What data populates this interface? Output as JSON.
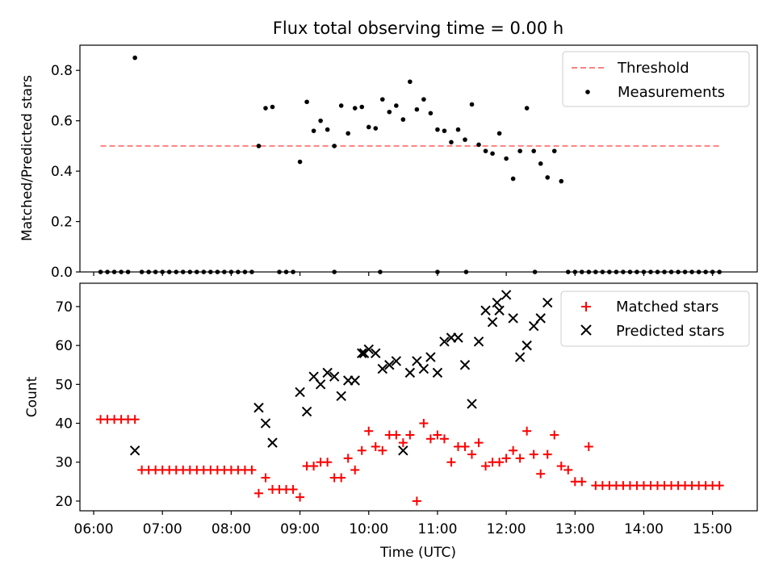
{
  "chart_data": {
    "title": "Flux total observing time = 0.00 h",
    "xlabel": "Time (UTC)",
    "x_ticks": [
      "06:00",
      "07:00",
      "08:00",
      "09:00",
      "10:00",
      "11:00",
      "12:00",
      "13:00",
      "14:00",
      "15:00"
    ],
    "x_range": [
      "05:48",
      "15:39"
    ],
    "shared_x": true,
    "grid": false,
    "subplots": [
      {
        "type": "scatter",
        "ylabel": "Matched/Predicted stars",
        "ylim": [
          0,
          0.9
        ],
        "y_ticks": [
          "0.0",
          "0.2",
          "0.4",
          "0.6",
          "0.8"
        ],
        "legend_position": "top-right",
        "threshold": {
          "name": "Threshold",
          "value": 0.5,
          "x_start": "06:06",
          "x_end": "15:06",
          "color": "#ff8080"
        },
        "series": [
          {
            "name": "Measurements",
            "color": "#000000",
            "marker": "dot",
            "x": [
              "06:06",
              "06:12",
              "06:18",
              "06:24",
              "06:30",
              "06:36",
              "06:42",
              "06:48",
              "06:54",
              "07:00",
              "07:06",
              "07:12",
              "07:18",
              "07:24",
              "07:30",
              "07:36",
              "07:42",
              "07:48",
              "07:54",
              "08:00",
              "08:06",
              "08:12",
              "08:18",
              "08:24",
              "08:30",
              "08:36",
              "08:42",
              "08:48",
              "08:54",
              "09:00",
              "09:06",
              "09:12",
              "09:18",
              "09:24",
              "09:30",
              "09:36",
              "09:42",
              "09:48",
              "09:54",
              "10:00",
              "10:06",
              "10:12",
              "10:18",
              "10:24",
              "10:30",
              "10:36",
              "10:42",
              "10:48",
              "10:54",
              "11:00",
              "11:06",
              "11:12",
              "11:18",
              "11:24",
              "11:30",
              "11:36",
              "11:42",
              "11:48",
              "11:54",
              "12:00",
              "12:06",
              "12:12",
              "12:18",
              "12:24",
              "12:30",
              "12:36",
              "12:42",
              "12:48",
              "12:54",
              "13:00",
              "13:06",
              "13:12",
              "13:18",
              "13:24",
              "13:30",
              "13:36",
              "13:42",
              "13:48",
              "13:54",
              "14:00",
              "14:06",
              "14:12",
              "14:18",
              "14:24",
              "14:30",
              "14:36",
              "14:42",
              "14:48",
              "14:54",
              "15:00",
              "15:06",
              "09:30",
              "10:10",
              "11:00",
              "11:25",
              "12:25"
            ],
            "y": [
              0,
              0,
              0,
              0,
              0,
              0.85,
              0,
              0,
              0,
              0,
              0,
              0,
              0,
              0,
              0,
              0,
              0,
              0,
              0,
              0,
              0,
              0,
              0,
              0.5,
              0.65,
              0.655,
              0,
              0,
              0,
              0.437,
              0.675,
              0.56,
              0.6,
              0.565,
              0.5,
              0.66,
              0.55,
              0.65,
              0.655,
              0.575,
              0.57,
              0.685,
              0.635,
              0.66,
              0.605,
              0.755,
              0.645,
              0.685,
              0.63,
              0.565,
              0.56,
              0.515,
              0.565,
              0.525,
              0.665,
              0.505,
              0.48,
              0.47,
              0.55,
              0.45,
              0.37,
              0.48,
              0.65,
              0.48,
              0.43,
              0.375,
              0.48,
              0.36,
              0,
              0,
              0,
              0,
              0,
              0,
              0,
              0,
              0,
              0,
              0,
              0,
              0,
              0,
              0,
              0,
              0,
              0,
              0,
              0,
              0,
              0,
              0,
              0,
              0,
              0,
              0,
              0
            ]
          }
        ]
      },
      {
        "type": "scatter",
        "ylabel": "Count",
        "ylim": [
          17.5,
          76
        ],
        "y_ticks": [
          "20",
          "30",
          "40",
          "50",
          "60",
          "70"
        ],
        "legend_position": "top-right",
        "series": [
          {
            "name": "Matched stars",
            "color": "#ff0000",
            "marker": "plus",
            "x": [
              "06:06",
              "06:12",
              "06:18",
              "06:24",
              "06:30",
              "06:36",
              "06:42",
              "06:48",
              "06:54",
              "07:00",
              "07:06",
              "07:12",
              "07:18",
              "07:24",
              "07:30",
              "07:36",
              "07:42",
              "07:48",
              "07:54",
              "08:00",
              "08:06",
              "08:12",
              "08:18",
              "08:24",
              "08:30",
              "08:36",
              "08:42",
              "08:48",
              "08:54",
              "09:00",
              "09:06",
              "09:12",
              "09:18",
              "09:24",
              "09:30",
              "09:36",
              "09:42",
              "09:48",
              "09:54",
              "10:00",
              "10:06",
              "10:12",
              "10:18",
              "10:24",
              "10:30",
              "10:36",
              "10:42",
              "10:48",
              "10:54",
              "11:00",
              "11:06",
              "11:12",
              "11:18",
              "11:24",
              "11:30",
              "11:36",
              "11:42",
              "11:48",
              "11:54",
              "12:00",
              "12:06",
              "12:12",
              "12:18",
              "12:24",
              "12:30",
              "12:36",
              "12:42",
              "12:48",
              "12:54",
              "13:00",
              "13:06",
              "13:12",
              "13:18",
              "13:24",
              "13:30",
              "13:36",
              "13:42",
              "13:48",
              "13:54",
              "14:00",
              "14:06",
              "14:12",
              "14:18",
              "14:24",
              "14:30",
              "14:36",
              "14:42",
              "14:48",
              "14:54",
              "15:00",
              "15:06"
            ],
            "y": [
              41,
              41,
              41,
              41,
              41,
              41,
              28,
              28,
              28,
              28,
              28,
              28,
              28,
              28,
              28,
              28,
              28,
              28,
              28,
              28,
              28,
              28,
              28,
              22,
              26,
              23,
              23,
              23,
              23,
              21,
              29,
              29,
              30,
              30,
              26,
              26,
              31,
              28,
              33,
              38,
              34,
              33,
              37,
              37,
              35,
              37,
              20,
              40,
              36,
              37,
              36,
              30,
              34,
              34,
              32,
              35,
              29,
              30,
              30,
              31,
              33,
              31,
              38,
              32,
              27,
              32,
              37,
              29,
              28,
              25,
              25,
              34,
              24,
              24,
              24,
              24,
              24,
              24,
              24,
              24,
              24,
              24,
              24,
              24,
              24,
              24,
              24,
              24,
              24,
              24,
              24
            ]
          },
          {
            "name": "Predicted stars",
            "color": "#000000",
            "marker": "x",
            "x": [
              "06:36",
              "08:24",
              "08:30",
              "08:36",
              "09:00",
              "09:06",
              "09:12",
              "09:18",
              "09:24",
              "09:30",
              "09:36",
              "09:42",
              "09:48",
              "09:54",
              "10:00",
              "10:06",
              "10:12",
              "10:18",
              "10:24",
              "10:30",
              "10:36",
              "10:42",
              "10:48",
              "10:54",
              "11:00",
              "11:06",
              "11:12",
              "11:18",
              "11:24",
              "11:30",
              "11:36",
              "11:42",
              "11:48",
              "11:54",
              "12:00",
              "12:06",
              "12:12",
              "12:18",
              "12:24",
              "12:30",
              "12:36",
              "09:56",
              "11:52"
            ],
            "y": [
              33,
              44,
              40,
              35,
              48,
              43,
              52,
              50,
              53,
              52,
              47,
              51,
              51,
              58,
              59,
              58,
              54,
              55,
              56,
              33,
              53,
              56,
              54,
              57,
              53,
              61,
              62,
              62,
              55,
              45,
              61,
              69,
              66,
              69,
              73,
              67,
              57,
              60,
              65,
              67,
              71,
              58,
              71
            ]
          }
        ]
      }
    ]
  }
}
